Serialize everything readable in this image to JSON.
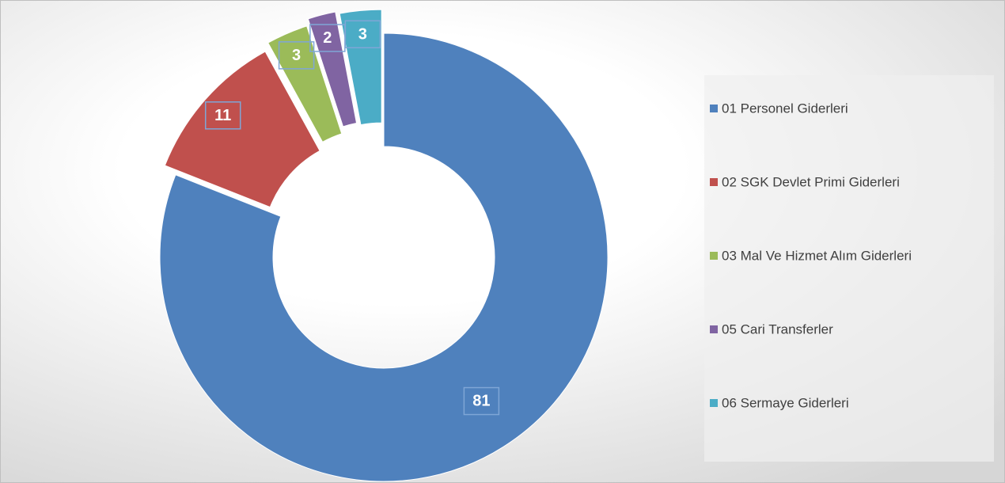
{
  "chart_data": {
    "type": "pie",
    "categories": [
      "01 Personel Giderleri",
      "02 SGK Devlet Primi Giderleri",
      "03 Mal Ve Hizmet Alım Giderleri",
      "05 Cari Transferler",
      "06 Sermaye Giderleri"
    ],
    "values": [
      81,
      11,
      3,
      2,
      3
    ],
    "colors": [
      "#4f81bd",
      "#c0504d",
      "#9bbb59",
      "#8064a2",
      "#4bacc6"
    ],
    "legend": "right"
  }
}
